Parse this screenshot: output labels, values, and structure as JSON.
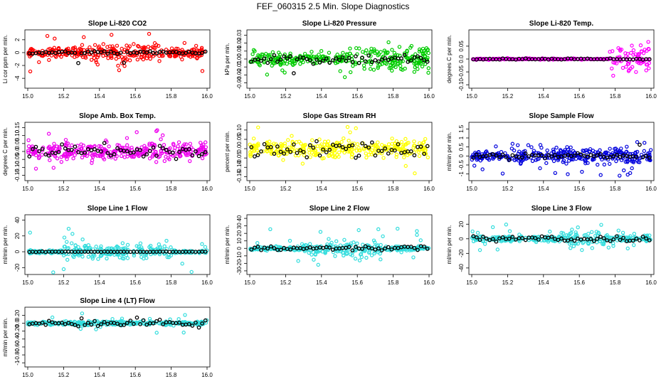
{
  "title": "FEF_060315  2.5 Min. Slope Diagnostics",
  "colors": {
    "black": "#000000"
  },
  "chart_data": [
    {
      "type": "scatter",
      "title": "Slope Li-820 CO2",
      "ylabel": "Li cor ppm per min.",
      "color": "#ff0000",
      "xlim": [
        15.0,
        16.0
      ],
      "ylim": [
        -5.2,
        3.2
      ],
      "xticks": [
        "15.0",
        "15.2",
        "15.4",
        "15.6",
        "15.8",
        "16.0"
      ],
      "yticks": [
        -4,
        -2,
        0,
        2
      ],
      "amp": 0.7,
      "oamp": 3.0,
      "bamp": 0.22,
      "burst": [
        15.3,
        15.75,
        2.0
      ]
    },
    {
      "type": "scatter",
      "title": "Slope Li-820 Pressure",
      "ylabel": "kPa per min.",
      "color": "#00cc00",
      "xlim": [
        15.0,
        16.0
      ],
      "ylim": [
        -0.034,
        0.034
      ],
      "xticks": [
        "15.0",
        "15.2",
        "15.4",
        "15.6",
        "15.8",
        "16.0"
      ],
      "yticks": [
        -0.03,
        -0.02,
        -0.01,
        0.0,
        0.01,
        0.02,
        0.03
      ],
      "amp": 0.008,
      "oamp": 0.03,
      "bamp": 0.006,
      "burst": [
        15.55,
        16.0,
        1.8
      ]
    },
    {
      "type": "scatter",
      "title": "Slope Li-820 Temp.",
      "ylabel": "degrees C per min.",
      "color": "#ff00ff",
      "xlim": [
        15.0,
        16.0
      ],
      "ylim": [
        -0.105,
        0.105
      ],
      "xticks": [
        "15.0",
        "15.2",
        "15.4",
        "15.6",
        "15.8",
        "16.0"
      ],
      "yticks": [
        -0.1,
        -0.05,
        0.0,
        0.05
      ],
      "amp": 0.002,
      "oamp": 0.004,
      "bamp": 0.002,
      "burst": [
        15.77,
        16.0,
        25
      ]
    },
    {
      "type": "scatter",
      "title": "Slope Amb. Box Temp.",
      "ylabel": "degrees C per min.",
      "color": "#ee00ee",
      "xlim": [
        15.0,
        16.0
      ],
      "ylim": [
        -0.17,
        0.17
      ],
      "xticks": [
        "15.0",
        "15.2",
        "15.4",
        "15.6",
        "15.8",
        "16.0"
      ],
      "yticks": [
        -0.15,
        -0.1,
        -0.05,
        0.0,
        0.05,
        0.1,
        0.15
      ],
      "amp": 0.05,
      "oamp": 0.14,
      "bamp": 0.04,
      "burst": [
        15.0,
        15.0,
        1
      ]
    },
    {
      "type": "scatter",
      "title": "Slope Gas Stream RH",
      "ylabel": "percent per min.",
      "color": "#ffff00",
      "xlim": [
        15.0,
        16.0
      ],
      "ylim": [
        -0.16,
        0.13
      ],
      "xticks": [
        "15.0",
        "15.2",
        "15.4",
        "15.6",
        "15.8",
        "16.0"
      ],
      "yticks": [
        -0.15,
        -0.1,
        -0.05,
        0.0,
        0.05,
        0.1
      ],
      "amp": 0.045,
      "oamp": 0.14,
      "bamp": 0.04,
      "burst": [
        15.0,
        15.0,
        1
      ]
    },
    {
      "type": "scatter",
      "title": "Slope Sample Flow",
      "ylabel": "ml/min per min.",
      "color": "#0000dd",
      "xlim": [
        15.0,
        16.0
      ],
      "ylim": [
        -1.25,
        1.75
      ],
      "xticks": [
        "15.0",
        "15.2",
        "15.4",
        "15.6",
        "15.8",
        "16.0"
      ],
      "yticks": [
        -1.0,
        -0.5,
        0.0,
        0.5,
        1.0,
        1.5
      ],
      "amp": 0.2,
      "oamp": 1.1,
      "bamp": 0.12,
      "burst": [
        15.2,
        16.0,
        2.2
      ]
    },
    {
      "type": "scatter",
      "title": "Slope Line 1 Flow",
      "ylabel": "ml/min per min.",
      "color": "#33dddd",
      "xlim": [
        15.0,
        16.0
      ],
      "ylim": [
        -26,
        44
      ],
      "xticks": [
        "15.0",
        "15.2",
        "15.4",
        "15.6",
        "15.8",
        "16.0"
      ],
      "yticks": [
        -20,
        0,
        20,
        40
      ],
      "amp": 2,
      "oamp": 30,
      "bamp": 0.3,
      "burst": [
        15.2,
        15.8,
        4
      ]
    },
    {
      "type": "scatter",
      "title": "Slope Line 2 Flow",
      "ylabel": "ml/min per min.",
      "color": "#33dddd",
      "xlim": [
        15.0,
        16.0
      ],
      "ylim": [
        -32,
        42
      ],
      "xticks": [
        "15.0",
        "15.2",
        "15.4",
        "15.6",
        "15.8",
        "16.0"
      ],
      "yticks": [
        -30,
        -20,
        -10,
        0,
        10,
        20,
        30,
        40
      ],
      "amp": 3,
      "oamp": 28,
      "bamp": 3,
      "burst": [
        15.3,
        15.75,
        3.5
      ]
    },
    {
      "type": "scatter",
      "title": "Slope Line 3 Flow",
      "ylabel": "ml/min per min.",
      "color": "#33dddd",
      "xlim": [
        15.0,
        16.0
      ],
      "ylim": [
        -46,
        30
      ],
      "xticks": [
        "15.0",
        "15.2",
        "15.4",
        "15.6",
        "15.8",
        "16.0"
      ],
      "yticks": [
        -40,
        -20,
        0,
        20
      ],
      "amp": 4,
      "oamp": 20,
      "bamp": 4,
      "burst": [
        15.5,
        15.8,
        2.5
      ]
    },
    {
      "type": "scatter",
      "title": "Slope Line 4 (LT) Flow",
      "ylabel": "ml/min per min.",
      "color": "#33dddd",
      "xlim": [
        15.0,
        16.0
      ],
      "ylim": [
        -1.05,
        0.35
      ],
      "xticks": [
        "15.0",
        "15.2",
        "15.4",
        "15.6",
        "15.8",
        "16.0"
      ],
      "yticks": [
        -1.0,
        -0.8,
        -0.6,
        -0.4,
        -0.2,
        0.0,
        0.2
      ],
      "amp": 0.05,
      "oamp": 0.25,
      "bamp": 0.08,
      "burst": [
        15.0,
        15.0,
        1
      ]
    }
  ]
}
